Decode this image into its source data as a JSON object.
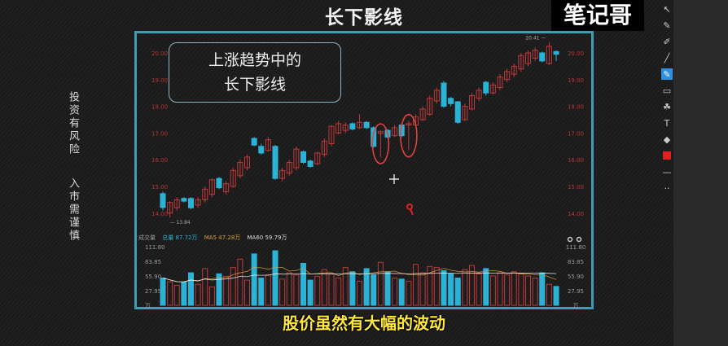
{
  "video": {
    "title": "长下影线",
    "logo": "笔记哥",
    "side_warning_1": "投资有风险",
    "side_warning_2": "入市需谨慎",
    "annotation_line1": "上涨趋势中的",
    "annotation_line2": "长下影线",
    "subtitle": "股价虽然有大幅的波动"
  },
  "toolbar": {
    "tools": [
      "cursor-icon",
      "pen-icon",
      "marker-icon",
      "line-icon",
      "highlighter-icon",
      "rectangle-icon",
      "shapes-icon",
      "text-icon",
      "eraser-icon",
      "color-swatch-icon",
      "stroke-width-icon",
      "more-icon"
    ],
    "active_tool": "highlighter-icon",
    "current_color": "#e02020"
  },
  "colors": {
    "up": "#c0393a",
    "down": "#2ab3d6",
    "frame": "#3d9db3",
    "ma5": "#e0e0e0",
    "ma10": "#d9a23a",
    "ma60": "#ffffff"
  },
  "chart_data": {
    "type": "candlestick",
    "price_axis": {
      "ticks": [
        "20.00",
        "19.00",
        "18.00",
        "17.00",
        "16.00",
        "15.00",
        "14.00"
      ],
      "ylim": [
        13.8,
        20.4
      ]
    },
    "high_label": "20.41",
    "low_label": "13.84",
    "ohlc_fields": [
      "open",
      "close",
      "high",
      "low"
    ],
    "candles": [
      [
        14.73,
        14.21,
        14.8,
        14.1
      ],
      [
        14.0,
        14.4,
        14.45,
        13.84
      ],
      [
        14.2,
        14.5,
        14.6,
        14.1
      ],
      [
        14.55,
        14.45,
        14.6,
        14.4
      ],
      [
        14.55,
        14.2,
        14.6,
        14.15
      ],
      [
        14.3,
        14.5,
        14.6,
        14.2
      ],
      [
        14.5,
        14.9,
        15.0,
        14.4
      ],
      [
        14.7,
        15.25,
        15.3,
        14.6
      ],
      [
        15.3,
        14.95,
        15.35,
        14.9
      ],
      [
        14.8,
        15.1,
        15.2,
        14.7
      ],
      [
        15.0,
        15.6,
        15.7,
        14.95
      ],
      [
        15.4,
        15.9,
        16.0,
        15.3
      ],
      [
        15.7,
        16.1,
        16.2,
        15.6
      ],
      [
        16.8,
        16.55,
        16.85,
        16.5
      ],
      [
        16.5,
        16.25,
        16.6,
        16.2
      ],
      [
        16.35,
        16.75,
        16.85,
        16.3
      ],
      [
        16.5,
        15.3,
        16.55,
        15.25
      ],
      [
        15.3,
        15.6,
        15.7,
        15.2
      ],
      [
        15.5,
        15.9,
        16.0,
        15.4
      ],
      [
        15.7,
        16.4,
        16.5,
        15.6
      ],
      [
        16.3,
        15.9,
        16.35,
        15.85
      ],
      [
        15.95,
        15.75,
        16.0,
        15.7
      ],
      [
        15.85,
        16.25,
        16.3,
        15.8
      ],
      [
        16.2,
        16.7,
        16.8,
        16.1
      ],
      [
        16.6,
        17.25,
        17.3,
        16.5
      ],
      [
        17.0,
        17.35,
        17.45,
        16.95
      ],
      [
        17.1,
        17.3,
        17.4,
        17.0
      ],
      [
        17.35,
        17.15,
        17.4,
        17.1
      ],
      [
        17.2,
        17.4,
        17.7,
        17.15
      ],
      [
        17.4,
        17.2,
        17.45,
        17.15
      ],
      [
        17.2,
        16.5,
        17.25,
        16.45
      ],
      [
        16.98,
        17.05,
        17.1,
        16.1
      ],
      [
        17.1,
        16.85,
        17.15,
        16.8
      ],
      [
        16.9,
        17.2,
        17.3,
        16.85
      ],
      [
        17.3,
        16.9,
        17.35,
        16.85
      ],
      [
        17.3,
        17.35,
        17.45,
        16.35
      ],
      [
        17.3,
        17.6,
        17.7,
        17.25
      ],
      [
        17.5,
        17.9,
        18.0,
        17.45
      ],
      [
        17.7,
        18.3,
        18.4,
        17.65
      ],
      [
        18.2,
        18.6,
        18.7,
        18.1
      ],
      [
        18.87,
        18.0,
        18.95,
        17.95
      ],
      [
        18.3,
        18.1,
        18.35,
        18.0
      ],
      [
        18.17,
        17.4,
        18.2,
        17.35
      ],
      [
        17.5,
        18.0,
        18.1,
        17.45
      ],
      [
        17.9,
        18.4,
        18.5,
        17.85
      ],
      [
        18.3,
        18.6,
        18.7,
        18.2
      ],
      [
        18.9,
        18.5,
        18.95,
        18.4
      ],
      [
        18.5,
        18.8,
        18.9,
        18.45
      ],
      [
        18.7,
        19.1,
        19.2,
        18.6
      ],
      [
        19.0,
        19.3,
        19.4,
        18.9
      ],
      [
        19.2,
        19.5,
        19.6,
        19.1
      ],
      [
        19.4,
        19.9,
        20.0,
        19.3
      ],
      [
        19.6,
        20.0,
        20.1,
        19.5
      ],
      [
        19.8,
        20.1,
        20.2,
        19.7
      ],
      [
        20.0,
        19.7,
        20.05,
        19.65
      ],
      [
        19.6,
        20.25,
        20.41,
        19.55
      ],
      [
        20.05,
        19.95,
        20.1,
        19.7
      ]
    ],
    "highlighted_candles": [
      32,
      36
    ],
    "volume": {
      "label": "成交量",
      "unit": "万",
      "ticks": [
        "111.80",
        "83.85",
        "55.90",
        "27.95",
        "万"
      ],
      "ylim": [
        0,
        111.8
      ],
      "legend": [
        "成交量",
        "总量 87.72万",
        "MA5 47.28万",
        "MA60 59.79万"
      ],
      "values": [
        52,
        45,
        38,
        44,
        62,
        40,
        70,
        35,
        60,
        55,
        72,
        88,
        48,
        98,
        52,
        58,
        104,
        50,
        62,
        58,
        80,
        48,
        55,
        68,
        60,
        52,
        72,
        64,
        46,
        70,
        58,
        82,
        64,
        52,
        50,
        46,
        78,
        62,
        74,
        72,
        66,
        60,
        52,
        68,
        76,
        60,
        70,
        56,
        62,
        58,
        64,
        60,
        56,
        52,
        62,
        40,
        36
      ]
    }
  }
}
